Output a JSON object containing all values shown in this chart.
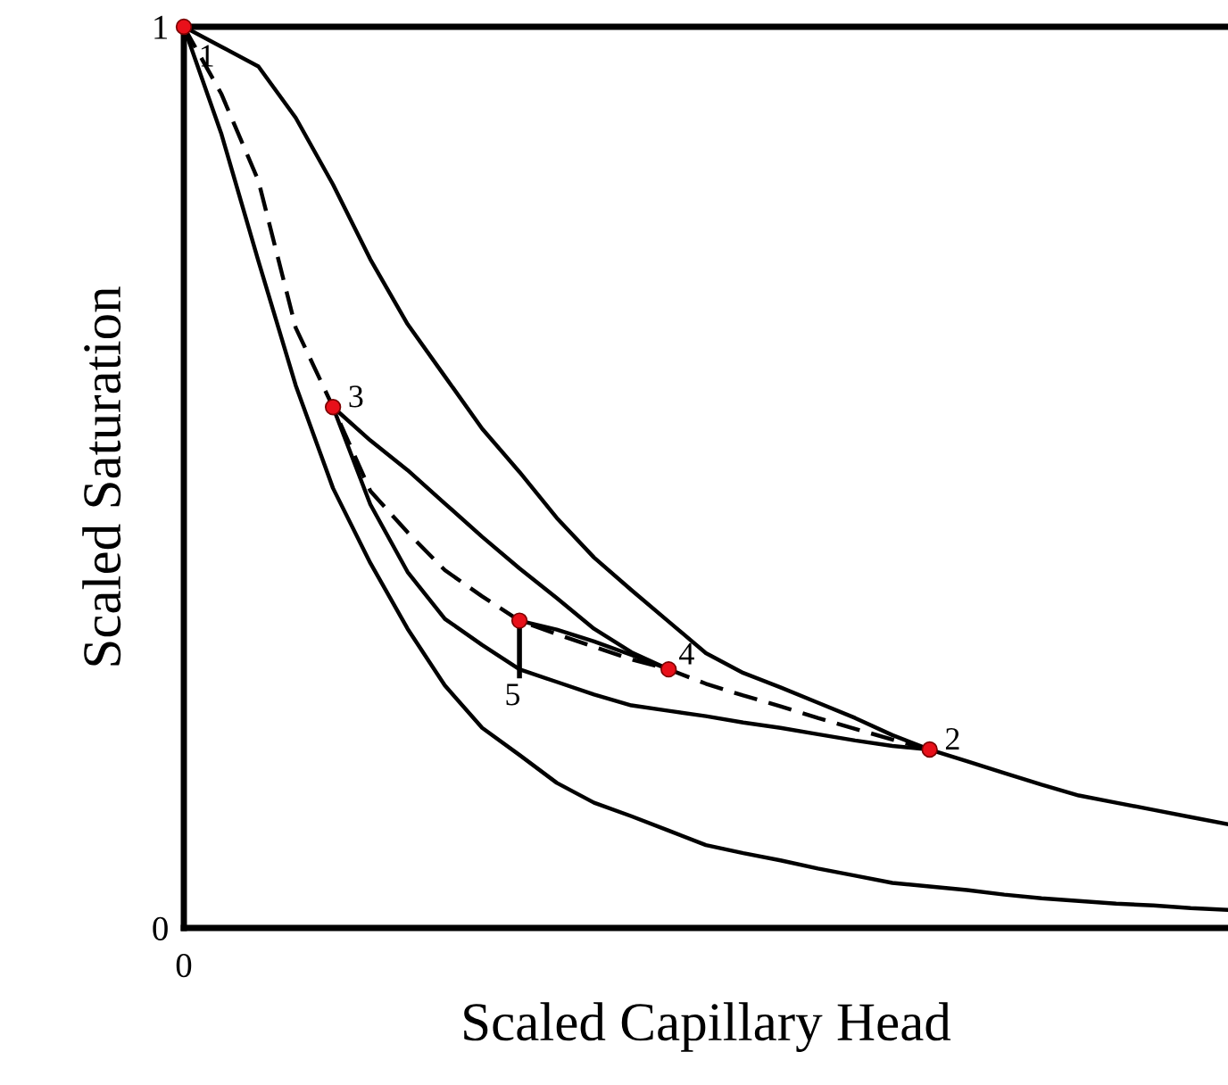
{
  "chart_data": {
    "type": "line",
    "xlabel": "Scaled Capillary Head",
    "ylabel": "Scaled Saturation",
    "categories": [
      null,
      null,
      null,
      null,
      null,
      null,
      null,
      null,
      null,
      null,
      null,
      null,
      null,
      null,
      null,
      null,
      null,
      null,
      null,
      null,
      null,
      null,
      null,
      null,
      null,
      null,
      null,
      null,
      null
    ],
    "ylim": [
      0,
      1
    ],
    "yticks": [
      0,
      1
    ],
    "series": [
      {
        "color": "#000000",
        "line_style": "solid",
        "values": [
          1,
          0.978,
          0.956,
          0.899,
          0.825,
          0.742,
          0.67,
          0.612,
          0.554,
          0.506,
          0.455,
          0.411,
          0.375,
          0.34,
          0.305,
          0.283,
          0.267,
          0.25,
          0.233,
          0.214,
          0.198,
          0.185,
          0.172,
          0.159,
          0.147,
          0.139,
          0.131,
          0.123,
          0.115
        ]
      },
      {
        "color": "#000000",
        "line_style": "solid",
        "values": [
          1,
          0.882,
          0.74,
          0.602,
          0.488,
          0.405,
          0.332,
          0.269,
          0.222,
          0.192,
          0.161,
          0.139,
          0.124,
          0.108,
          0.092,
          0.083,
          0.075,
          0.066,
          0.058,
          0.05,
          0.046,
          0.042,
          0.037,
          0.033,
          0.03,
          0.027,
          0.025,
          0.022,
          0.02
        ]
      },
      {
        "color": "#000000",
        "line_style": "dashed",
        "values": [
          1,
          0.926,
          0.829,
          0.666,
          0.578,
          0.485,
          0.439,
          0.397,
          0.368,
          0.341,
          0.326,
          0.312,
          0.298,
          0.287,
          0.271,
          0.258,
          0.246,
          0.233,
          0.221,
          0.209,
          0.198,
          null,
          null,
          null,
          null,
          null,
          null,
          null,
          null
        ]
      },
      {
        "color": "#000000",
        "line_style": "solid",
        "values": [
          null,
          null,
          null,
          null,
          0.578,
          0.47,
          0.395,
          0.343,
          0.314,
          0.287,
          0.273,
          0.259,
          0.247,
          0.241,
          0.235,
          0.228,
          0.222,
          0.215,
          0.208,
          0.202,
          0.198,
          null,
          null,
          null,
          null,
          null,
          null,
          null,
          null
        ]
      },
      {
        "color": "#000000",
        "line_style": "solid",
        "values": [
          null,
          null,
          null,
          null,
          0.578,
          0.541,
          0.508,
          0.471,
          0.434,
          0.399,
          0.366,
          0.332,
          0.306,
          0.287,
          null,
          null,
          null,
          null,
          null,
          null,
          null,
          null,
          null,
          null,
          null,
          null,
          null,
          null,
          null
        ]
      },
      {
        "color": "#000000",
        "line_style": "solid",
        "values": [
          null,
          null,
          null,
          null,
          null,
          null,
          null,
          null,
          null,
          0.341,
          0.331,
          0.318,
          0.303,
          0.287,
          null,
          null,
          null,
          null,
          null,
          null,
          null,
          null,
          null,
          null,
          null,
          null,
          null,
          null,
          null
        ]
      },
      {
        "type": "scatter",
        "color": "#e8101a",
        "marker": "circle",
        "values": [
          1,
          null,
          null,
          null,
          0.578,
          null,
          null,
          null,
          null,
          0.341,
          null,
          null,
          null,
          0.287,
          null,
          null,
          null,
          null,
          null,
          null,
          0.198,
          null,
          null,
          null,
          null,
          null,
          null,
          null,
          null
        ],
        "errors": [
          null,
          null,
          null,
          null,
          null,
          null,
          null,
          null,
          null,
          [
            0.277,
            0.341
          ],
          null,
          null,
          null,
          null,
          null,
          null,
          null,
          null,
          null,
          null,
          null,
          null,
          null,
          null,
          null,
          null,
          null,
          null,
          null
        ]
      }
    ],
    "annotations": [
      "1",
      "3",
      "5",
      "4",
      "2",
      "0"
    ]
  }
}
